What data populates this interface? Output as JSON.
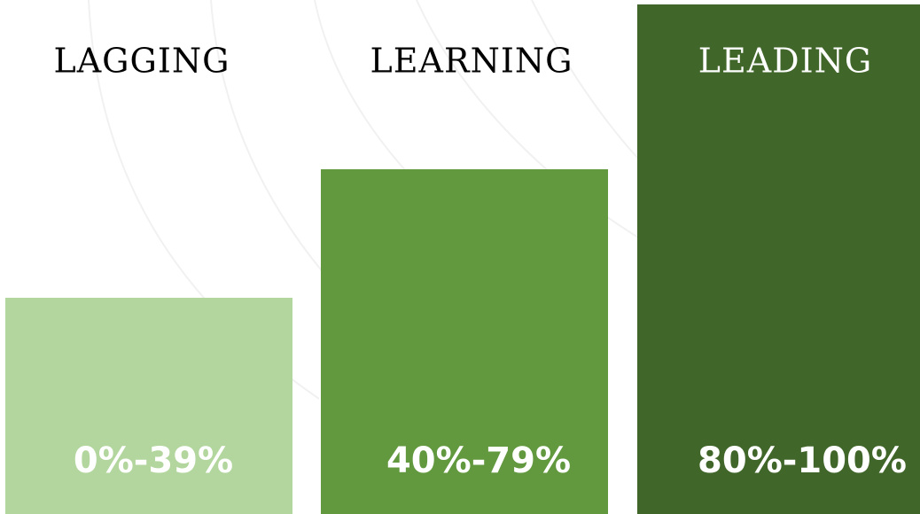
{
  "tiers": [
    {
      "title": "LAGGING",
      "range": "0%-39%"
    },
    {
      "title": "LEARNING",
      "range": "40%-79%"
    },
    {
      "title": "LEADING",
      "range": "80%-100%"
    }
  ]
}
